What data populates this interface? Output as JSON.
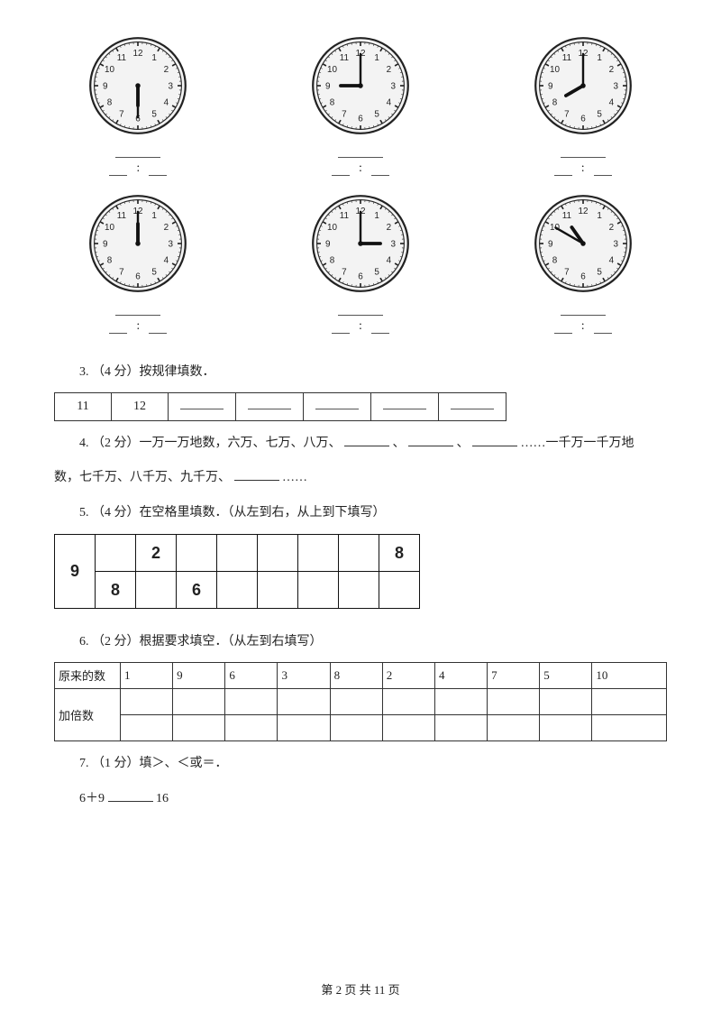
{
  "clocks": [
    {
      "hour_angle": 180,
      "minute_angle": 180
    },
    {
      "hour_angle": 270,
      "minute_angle": 0
    },
    {
      "hour_angle": 240,
      "minute_angle": 0
    },
    {
      "hour_angle": 0,
      "minute_angle": 0
    },
    {
      "hour_angle": 90,
      "minute_angle": 0
    },
    {
      "hour_angle": 325,
      "minute_angle": 300
    }
  ],
  "clock_style": {
    "face_fill": "#f3f3f3",
    "border": "#222",
    "tick": "#222",
    "hand": "#111",
    "number_color": "#222",
    "number_fontsize": 9
  },
  "time_colon": ":",
  "q3": {
    "prefix": "3.   （4 分）按规律填数．",
    "cells": [
      "11",
      "12",
      "",
      "",
      "",
      "",
      ""
    ]
  },
  "q4": {
    "line1_a": "4.   （2 分）一万一万地数，六万、七万、八万、",
    "line1_b": "、",
    "line1_c": "、",
    "line1_d": "……一千万一千万地",
    "line2_a": "数，七千万、八千万、九千万、",
    "line2_b": "……"
  },
  "q5": {
    "prefix": "5.   （4 分）在空格里填数．（从左到右，从上到下填写）",
    "lead": "9",
    "row1": [
      "",
      "2",
      "",
      "",
      "",
      "",
      "",
      "8"
    ],
    "row2": [
      "8",
      "",
      "6",
      "",
      "",
      "",
      "",
      ""
    ]
  },
  "q6": {
    "prefix": "6.   （2 分）根据要求填空．（从左到右填写）",
    "label1": "原来的数",
    "label2": "加倍数",
    "row1": [
      "1",
      "9",
      "6",
      "3",
      "8",
      "2",
      "4",
      "7",
      "5",
      "10"
    ]
  },
  "q7": {
    "prefix": "7.   （1 分）填＞、＜或＝．",
    "expr_left": "6＋9",
    "expr_right": "16"
  },
  "footer": "第 2 页 共 11 页"
}
